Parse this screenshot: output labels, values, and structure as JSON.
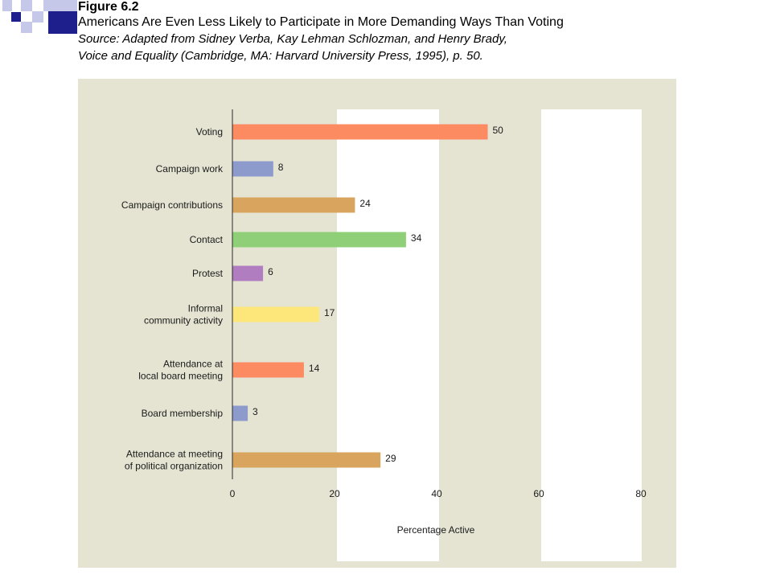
{
  "header": {
    "figure_label": "Figure 6.2",
    "title": "Americans Are Even Less Likely to Participate in More Demanding Ways Than Voting",
    "source_line1": "Source: Adapted from Sidney Verba, Kay Lehman Schlozman, and Henry Brady,",
    "source_line2": "Voice and Equality (Cambridge, MA: Harvard University Press, 1995), p. 50."
  },
  "colors": {
    "panel": "#e5e4d3",
    "deco_dark": "#1e1e8c",
    "deco_light": "#c5c8e8"
  },
  "chart_data": {
    "type": "bar",
    "orientation": "horizontal",
    "xlabel": "Percentage Active",
    "xlim": [
      0,
      80
    ],
    "xticks": [
      0,
      20,
      40,
      60,
      80
    ],
    "grid": false,
    "categories": [
      [
        "Voting"
      ],
      [
        "Campaign work"
      ],
      [
        "Campaign contributions"
      ],
      [
        "Contact"
      ],
      [
        "Protest"
      ],
      [
        "Informal",
        "community activity"
      ],
      [
        "Attendance at",
        "local board meeting"
      ],
      [
        "Board membership"
      ],
      [
        "Attendance at meeting",
        "of political organization"
      ]
    ],
    "values": [
      50,
      8,
      24,
      34,
      6,
      17,
      14,
      3,
      29
    ],
    "value_labels": [
      "50",
      "8",
      "24",
      "34",
      "6",
      "17",
      "14",
      "3",
      "29"
    ],
    "bar_colors": [
      "#fc8b62",
      "#8c9acc",
      "#d9a45e",
      "#8fcf78",
      "#b07ec0",
      "#fde67a",
      "#fc8b62",
      "#8c9acc",
      "#d9a45e"
    ]
  }
}
